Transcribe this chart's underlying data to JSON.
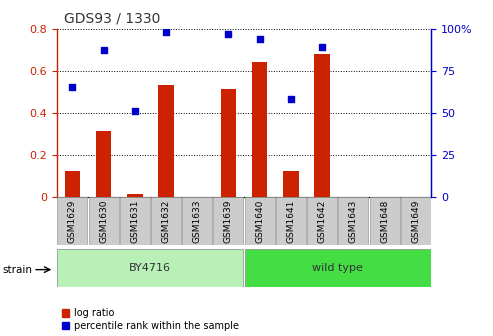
{
  "title": "GDS93 / 1330",
  "samples": [
    "GSM1629",
    "GSM1630",
    "GSM1631",
    "GSM1632",
    "GSM1633",
    "GSM1639",
    "GSM1640",
    "GSM1641",
    "GSM1642",
    "GSM1643",
    "GSM1648",
    "GSM1649"
  ],
  "log_ratio": [
    0.12,
    0.31,
    0.01,
    0.53,
    0.0,
    0.51,
    0.64,
    0.12,
    0.68,
    0.0,
    0.0,
    0.0
  ],
  "percentile_rank": [
    65,
    87,
    51,
    98,
    null,
    97,
    94,
    58,
    89,
    null,
    null,
    null
  ],
  "by4716_count": 6,
  "bar_color": "#cc2200",
  "dot_color": "#0000cc",
  "by4716_color": "#b8f0b8",
  "wildtype_color": "#44dd44",
  "tickbox_color": "#cccccc",
  "ylim_left": [
    0.0,
    0.8
  ],
  "ylim_right": [
    0,
    100
  ],
  "yticks_left": [
    0.0,
    0.2,
    0.4,
    0.6,
    0.8
  ],
  "ytick_labels_left": [
    "0",
    "0.2",
    "0.4",
    "0.6",
    "0.8"
  ],
  "yticks_right": [
    0,
    25,
    50,
    75,
    100
  ],
  "ytick_labels_right": [
    "0",
    "25",
    "50",
    "75",
    "100%"
  ],
  "tick_color_left": "#cc2200",
  "tick_color_right": "#0000cc",
  "legend_items": [
    "log ratio",
    "percentile rank within the sample"
  ]
}
